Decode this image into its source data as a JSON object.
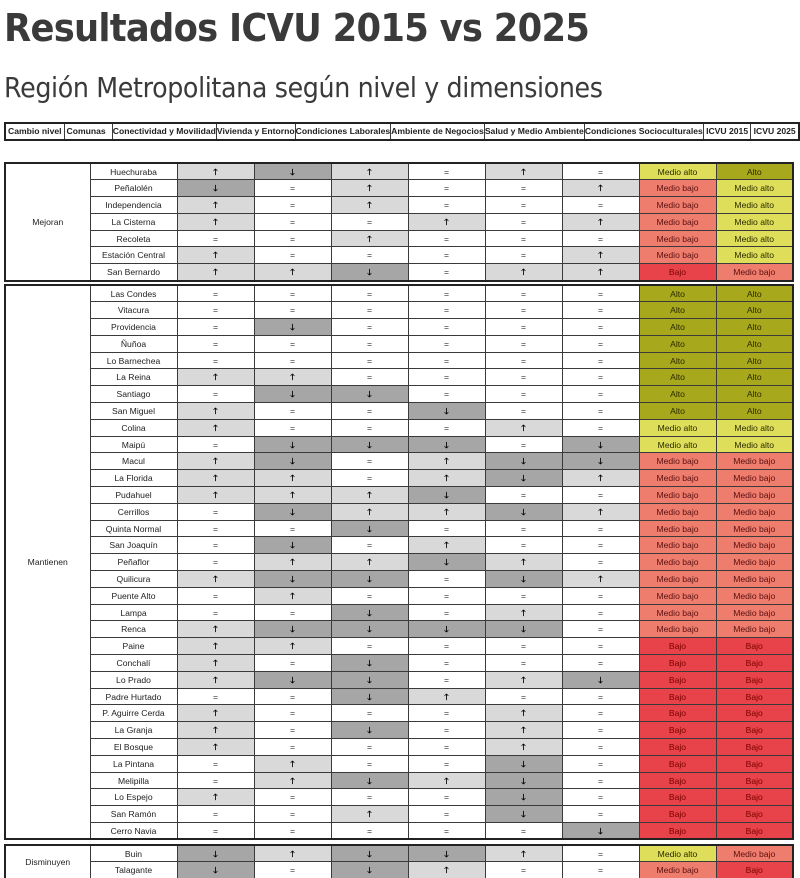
{
  "title": "Resultados ICVU 2015 vs 2025",
  "subtitle": "Región Metropolitana según nivel y dimensiones",
  "symbols": {
    "up": "🡑",
    "down": "🡓",
    "eq": "="
  },
  "colors": {
    "up_bg": "#d9d9d9",
    "down_bg": "#a6a6a6",
    "eq_bg": "#ffffff",
    "Alto": "#a8a81c",
    "Medio alto": "#dede5a",
    "Medio bajo": "#ee7d6e",
    "Bajo": "#e8424a"
  },
  "headers": [
    "Cambio nivel",
    "Comunas",
    "Conectividad y Movilidad",
    "Vivienda y Entorno",
    "Condiciones Laborales",
    "Ambiente de Negocios",
    "Salud y Medio Ambiente",
    "Condiciones Socioculturales",
    "ICVU 2015",
    "ICVU 2025"
  ],
  "groups": [
    {
      "label": "Mejoran",
      "rows": [
        {
          "comuna": "Huechuraba",
          "dims": [
            "up",
            "down",
            "up",
            "eq",
            "up",
            "eq"
          ],
          "icvu2015": "Medio alto",
          "icvu2025": "Alto"
        },
        {
          "comuna": "Peñalolén",
          "dims": [
            "down",
            "eq",
            "up",
            "eq",
            "eq",
            "up"
          ],
          "icvu2015": "Medio bajo",
          "icvu2025": "Medio alto"
        },
        {
          "comuna": "Independencia",
          "dims": [
            "up",
            "eq",
            "up",
            "eq",
            "eq",
            "eq"
          ],
          "icvu2015": "Medio bajo",
          "icvu2025": "Medio alto"
        },
        {
          "comuna": "La Cisterna",
          "dims": [
            "up",
            "eq",
            "eq",
            "up",
            "eq",
            "up"
          ],
          "icvu2015": "Medio bajo",
          "icvu2025": "Medio alto"
        },
        {
          "comuna": "Recoleta",
          "dims": [
            "eq",
            "eq",
            "up",
            "eq",
            "eq",
            "eq"
          ],
          "icvu2015": "Medio bajo",
          "icvu2025": "Medio alto"
        },
        {
          "comuna": "Estación Central",
          "dims": [
            "up",
            "eq",
            "eq",
            "eq",
            "eq",
            "up"
          ],
          "icvu2015": "Medio bajo",
          "icvu2025": "Medio alto"
        },
        {
          "comuna": "San Bernardo",
          "dims": [
            "up",
            "up",
            "down",
            "eq",
            "up",
            "up"
          ],
          "icvu2015": "Bajo",
          "icvu2025": "Medio bajo"
        }
      ]
    },
    {
      "label": "Mantienen",
      "rows": [
        {
          "comuna": "Las Condes",
          "dims": [
            "eq",
            "eq",
            "eq",
            "eq",
            "eq",
            "eq"
          ],
          "icvu2015": "Alto",
          "icvu2025": "Alto"
        },
        {
          "comuna": "Vitacura",
          "dims": [
            "eq",
            "eq",
            "eq",
            "eq",
            "eq",
            "eq"
          ],
          "icvu2015": "Alto",
          "icvu2025": "Alto"
        },
        {
          "comuna": "Providencia",
          "dims": [
            "eq",
            "down",
            "eq",
            "eq",
            "eq",
            "eq"
          ],
          "icvu2015": "Alto",
          "icvu2025": "Alto"
        },
        {
          "comuna": "Ñuñoa",
          "dims": [
            "eq",
            "eq",
            "eq",
            "eq",
            "eq",
            "eq"
          ],
          "icvu2015": "Alto",
          "icvu2025": "Alto"
        },
        {
          "comuna": "Lo Barnechea",
          "dims": [
            "eq",
            "eq",
            "eq",
            "eq",
            "eq",
            "eq"
          ],
          "icvu2015": "Alto",
          "icvu2025": "Alto"
        },
        {
          "comuna": "La Reina",
          "dims": [
            "up",
            "up",
            "eq",
            "eq",
            "eq",
            "eq"
          ],
          "icvu2015": "Alto",
          "icvu2025": "Alto"
        },
        {
          "comuna": "Santiago",
          "dims": [
            "eq",
            "down",
            "down",
            "eq",
            "eq",
            "eq"
          ],
          "icvu2015": "Alto",
          "icvu2025": "Alto"
        },
        {
          "comuna": "San Miguel",
          "dims": [
            "up",
            "eq",
            "eq",
            "down",
            "eq",
            "eq"
          ],
          "icvu2015": "Alto",
          "icvu2025": "Alto"
        },
        {
          "comuna": "Colina",
          "dims": [
            "up",
            "eq",
            "eq",
            "eq",
            "up",
            "eq"
          ],
          "icvu2015": "Medio alto",
          "icvu2025": "Medio alto"
        },
        {
          "comuna": "Maipú",
          "dims": [
            "eq",
            "down",
            "down",
            "down",
            "eq",
            "down"
          ],
          "icvu2015": "Medio alto",
          "icvu2025": "Medio alto"
        },
        {
          "comuna": "Macul",
          "dims": [
            "up",
            "down",
            "eq",
            "up",
            "down",
            "down"
          ],
          "icvu2015": "Medio bajo",
          "icvu2025": "Medio bajo"
        },
        {
          "comuna": "La Florida",
          "dims": [
            "up",
            "up",
            "eq",
            "up",
            "down",
            "up"
          ],
          "icvu2015": "Medio bajo",
          "icvu2025": "Medio bajo"
        },
        {
          "comuna": "Pudahuel",
          "dims": [
            "up",
            "up",
            "up",
            "down",
            "eq",
            "eq"
          ],
          "icvu2015": "Medio bajo",
          "icvu2025": "Medio bajo"
        },
        {
          "comuna": "Cerrillos",
          "dims": [
            "eq",
            "down",
            "up",
            "up",
            "down",
            "up"
          ],
          "icvu2015": "Medio bajo",
          "icvu2025": "Medio bajo"
        },
        {
          "comuna": "Quinta Normal",
          "dims": [
            "eq",
            "eq",
            "down",
            "eq",
            "eq",
            "eq"
          ],
          "icvu2015": "Medio bajo",
          "icvu2025": "Medio bajo"
        },
        {
          "comuna": "San Joaquín",
          "dims": [
            "eq",
            "down",
            "eq",
            "up",
            "eq",
            "eq"
          ],
          "icvu2015": "Medio bajo",
          "icvu2025": "Medio bajo"
        },
        {
          "comuna": "Peñaflor",
          "dims": [
            "eq",
            "up",
            "up",
            "down",
            "up",
            "eq"
          ],
          "icvu2015": "Medio bajo",
          "icvu2025": "Medio bajo"
        },
        {
          "comuna": "Quilicura",
          "dims": [
            "up",
            "down",
            "down",
            "eq",
            "down",
            "up"
          ],
          "icvu2015": "Medio bajo",
          "icvu2025": "Medio bajo"
        },
        {
          "comuna": "Puente Alto",
          "dims": [
            "eq",
            "up",
            "eq",
            "eq",
            "eq",
            "eq"
          ],
          "icvu2015": "Medio bajo",
          "icvu2025": "Medio bajo"
        },
        {
          "comuna": "Lampa",
          "dims": [
            "eq",
            "eq",
            "down",
            "eq",
            "up",
            "eq"
          ],
          "icvu2015": "Medio bajo",
          "icvu2025": "Medio bajo"
        },
        {
          "comuna": "Renca",
          "dims": [
            "up",
            "down",
            "down",
            "down",
            "down",
            "eq"
          ],
          "icvu2015": "Medio bajo",
          "icvu2025": "Medio bajo"
        },
        {
          "comuna": "Paine",
          "dims": [
            "up",
            "up",
            "eq",
            "eq",
            "eq",
            "eq"
          ],
          "icvu2015": "Bajo",
          "icvu2025": "Bajo"
        },
        {
          "comuna": "Conchalí",
          "dims": [
            "up",
            "eq",
            "down",
            "eq",
            "eq",
            "eq"
          ],
          "icvu2015": "Bajo",
          "icvu2025": "Bajo"
        },
        {
          "comuna": "Lo Prado",
          "dims": [
            "up",
            "down",
            "down",
            "eq",
            "up",
            "down"
          ],
          "icvu2015": "Bajo",
          "icvu2025": "Bajo"
        },
        {
          "comuna": "Padre Hurtado",
          "dims": [
            "eq",
            "eq",
            "down",
            "up",
            "eq",
            "eq"
          ],
          "icvu2015": "Bajo",
          "icvu2025": "Bajo"
        },
        {
          "comuna": "P. Aguirre Cerda",
          "dims": [
            "up",
            "eq",
            "eq",
            "eq",
            "up",
            "eq"
          ],
          "icvu2015": "Bajo",
          "icvu2025": "Bajo"
        },
        {
          "comuna": "La Granja",
          "dims": [
            "up",
            "eq",
            "down",
            "eq",
            "up",
            "eq"
          ],
          "icvu2015": "Bajo",
          "icvu2025": "Bajo"
        },
        {
          "comuna": "El Bosque",
          "dims": [
            "up",
            "eq",
            "eq",
            "eq",
            "up",
            "eq"
          ],
          "icvu2015": "Bajo",
          "icvu2025": "Bajo"
        },
        {
          "comuna": "La Pintana",
          "dims": [
            "eq",
            "up",
            "eq",
            "eq",
            "down",
            "eq"
          ],
          "icvu2015": "Bajo",
          "icvu2025": "Bajo"
        },
        {
          "comuna": "Melipilla",
          "dims": [
            "eq",
            "up",
            "down",
            "up",
            "down",
            "eq"
          ],
          "icvu2015": "Bajo",
          "icvu2025": "Bajo"
        },
        {
          "comuna": "Lo Espejo",
          "dims": [
            "up",
            "eq",
            "eq",
            "eq",
            "down",
            "eq"
          ],
          "icvu2015": "Bajo",
          "icvu2025": "Bajo"
        },
        {
          "comuna": "San Ramón",
          "dims": [
            "eq",
            "eq",
            "up",
            "eq",
            "down",
            "eq"
          ],
          "icvu2015": "Bajo",
          "icvu2025": "Bajo"
        },
        {
          "comuna": "Cerro Navia",
          "dims": [
            "eq",
            "eq",
            "eq",
            "eq",
            "eq",
            "down"
          ],
          "icvu2015": "Bajo",
          "icvu2025": "Bajo"
        }
      ]
    },
    {
      "label": "Disminuyen",
      "rows": [
        {
          "comuna": "Buin",
          "dims": [
            "down",
            "up",
            "down",
            "down",
            "up",
            "eq"
          ],
          "icvu2015": "Medio alto",
          "icvu2025": "Medio bajo"
        },
        {
          "comuna": "Talagante",
          "dims": [
            "down",
            "eq",
            "down",
            "up",
            "eq",
            "eq"
          ],
          "icvu2015": "Medio bajo",
          "icvu2025": "Bajo"
        }
      ]
    }
  ]
}
